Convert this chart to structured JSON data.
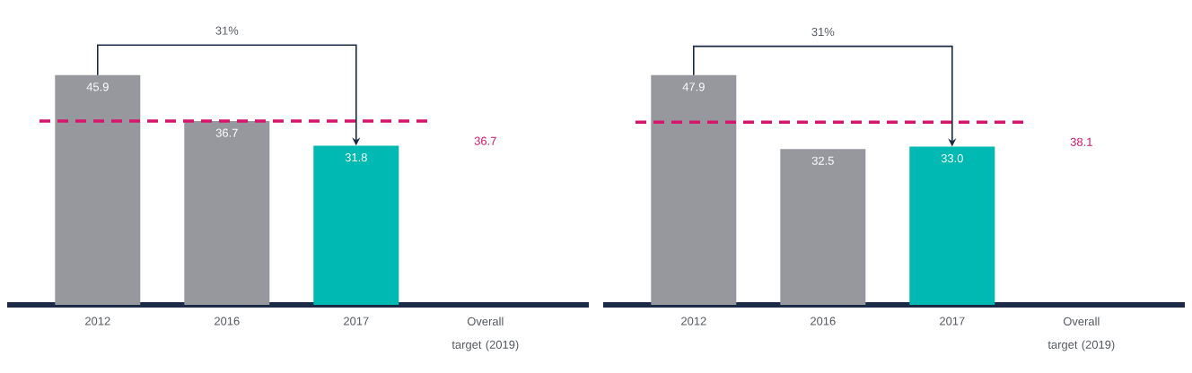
{
  "chart_data": [
    {
      "type": "bar",
      "categories": [
        "2012",
        "2016",
        "2017",
        "Overall target (2019)"
      ],
      "values": [
        45.9,
        36.7,
        31.8,
        null
      ],
      "colors": [
        "#97989e",
        "#97989e",
        "#00b9b3",
        null
      ],
      "value_labels": [
        "45.9",
        "36.7",
        "31.8",
        null
      ],
      "ref_lines": [
        {
          "axis": "y",
          "value": 36.7,
          "label": "36.7",
          "color": "#d6156c",
          "line_style": "dashed"
        }
      ],
      "annotations": [
        "31%"
      ]
    },
    {
      "type": "bar",
      "categories": [
        "2012",
        "2016",
        "2017",
        "Overall target (2019)"
      ],
      "values": [
        47.9,
        32.5,
        33.0,
        null
      ],
      "colors": [
        "#97989e",
        "#97989e",
        "#00b9b3",
        null
      ],
      "value_labels": [
        "47.9",
        "32.5",
        "33.0",
        null
      ],
      "ref_lines": [
        {
          "axis": "y",
          "value": 38.1,
          "label": "38.1",
          "color": "#d6156c",
          "line_style": "dashed"
        }
      ],
      "annotations": [
        "31%"
      ]
    }
  ]
}
